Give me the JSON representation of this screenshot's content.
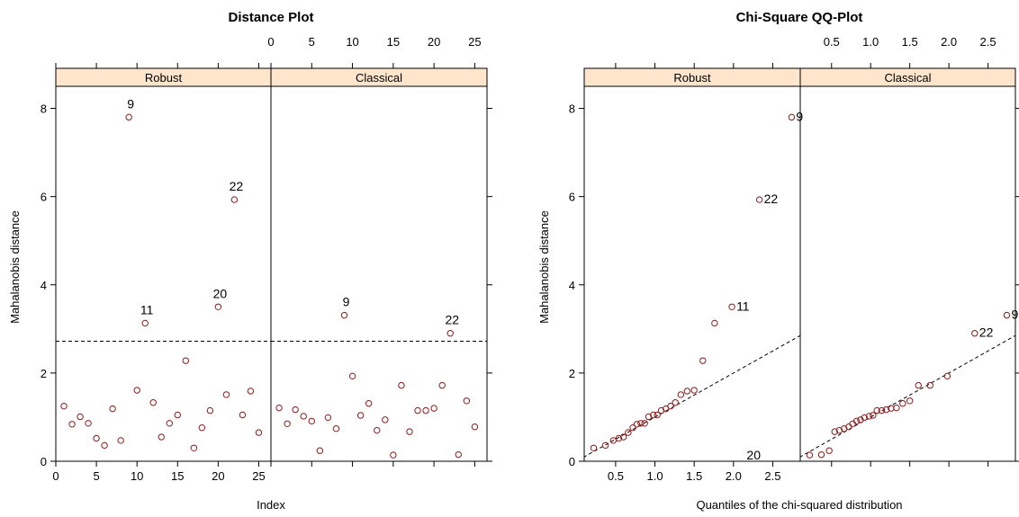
{
  "chart_data": [
    {
      "type": "scatter",
      "title": "Distance Plot",
      "xlabel": "Index",
      "ylabel": "Mahalanobis distance",
      "ylim": [
        0,
        8.5
      ],
      "yticks": [
        0,
        2,
        4,
        6,
        8
      ],
      "xticks": [
        0,
        5,
        10,
        15,
        20,
        25
      ],
      "xlim": [
        0,
        26.5
      ],
      "cutoff": 2.72,
      "grid": false,
      "panels": [
        {
          "name": "Robust",
          "x": [
            1,
            2,
            3,
            4,
            5,
            6,
            7,
            8,
            9,
            10,
            11,
            12,
            13,
            14,
            15,
            16,
            17,
            18,
            19,
            20,
            21,
            22,
            23,
            24,
            25
          ],
          "y": [
            1.25,
            0.84,
            1.01,
            0.86,
            0.52,
            0.36,
            1.19,
            0.47,
            7.8,
            1.61,
            3.13,
            1.33,
            0.55,
            0.86,
            1.05,
            2.28,
            0.3,
            0.76,
            1.15,
            3.5,
            1.51,
            5.93,
            1.05,
            1.59,
            0.65
          ],
          "labels": [
            {
              "x": 9,
              "text": "9"
            },
            {
              "x": 11,
              "text": "11"
            },
            {
              "x": 20,
              "text": "20"
            },
            {
              "x": 22,
              "text": "22"
            }
          ]
        },
        {
          "name": "Classical",
          "x": [
            1,
            2,
            3,
            4,
            5,
            6,
            7,
            8,
            9,
            10,
            11,
            12,
            13,
            14,
            15,
            16,
            17,
            18,
            19,
            20,
            21,
            22,
            23,
            24,
            25
          ],
          "y": [
            1.21,
            0.85,
            1.17,
            1.02,
            0.91,
            0.24,
            0.99,
            0.74,
            3.31,
            1.93,
            1.04,
            1.31,
            0.7,
            0.94,
            0.14,
            1.72,
            0.67,
            1.15,
            1.15,
            1.2,
            1.72,
            2.9,
            0.15,
            1.37,
            0.78
          ],
          "labels": [
            {
              "x": 9,
              "text": "9"
            },
            {
              "x": 22,
              "text": "22"
            }
          ]
        }
      ]
    },
    {
      "type": "scatter",
      "title": "Chi-Square QQ-Plot",
      "xlabel": "Quantiles of the chi-squared distribution",
      "ylabel": "Mahalanobis distance",
      "ylim": [
        0,
        8.5
      ],
      "yticks": [
        0,
        2,
        4,
        6,
        8
      ],
      "xticks": [
        0.5,
        1.0,
        1.5,
        2.0,
        2.5
      ],
      "xtick_labels": [
        "0.5",
        "1.0",
        "1.5",
        "2.0",
        "2.5"
      ],
      "xlim": [
        0.1,
        2.85
      ],
      "grid": false,
      "panels": [
        {
          "name": "Robust",
          "x": [
            0.22,
            0.37,
            0.47,
            0.54,
            0.6,
            0.66,
            0.72,
            0.77,
            0.82,
            0.87,
            0.92,
            0.98,
            1.03,
            1.08,
            1.14,
            1.2,
            1.26,
            1.33,
            1.41,
            1.5,
            1.61,
            1.76,
            1.98,
            2.33,
            2.74
          ],
          "y": [
            0.3,
            0.36,
            0.47,
            0.52,
            0.55,
            0.65,
            0.76,
            0.84,
            0.86,
            0.86,
            1.01,
            1.05,
            1.05,
            1.15,
            1.19,
            1.25,
            1.33,
            1.51,
            1.59,
            1.61,
            2.28,
            3.13,
            3.5,
            5.93,
            7.8
          ],
          "line": {
            "slope": 1.0,
            "intercept": 0.0
          },
          "labels": [
            {
              "x": 1.98,
              "text": "11"
            },
            {
              "x": 2.11,
              "text": "20"
            },
            {
              "x": 2.33,
              "text": "22"
            },
            {
              "x": 2.74,
              "text": "9"
            }
          ]
        },
        {
          "name": "Classical",
          "x": [
            0.22,
            0.37,
            0.47,
            0.54,
            0.6,
            0.66,
            0.72,
            0.77,
            0.82,
            0.87,
            0.92,
            0.98,
            1.03,
            1.08,
            1.14,
            1.2,
            1.26,
            1.33,
            1.41,
            1.5,
            1.61,
            1.76,
            1.98,
            2.33,
            2.74
          ],
          "y": [
            0.14,
            0.15,
            0.24,
            0.67,
            0.7,
            0.74,
            0.78,
            0.85,
            0.91,
            0.94,
            0.99,
            1.02,
            1.04,
            1.15,
            1.15,
            1.17,
            1.2,
            1.21,
            1.31,
            1.37,
            1.72,
            1.72,
            1.93,
            2.9,
            3.31
          ],
          "line": {
            "slope": 1.0,
            "intercept": 0.0
          },
          "labels": [
            {
              "x": 2.33,
              "text": "22"
            },
            {
              "x": 2.74,
              "text": "9"
            }
          ]
        }
      ]
    }
  ],
  "style": {
    "point_color": "#8b1a1a",
    "strip_color": "#ffe5cc",
    "line_color": "#000000"
  }
}
